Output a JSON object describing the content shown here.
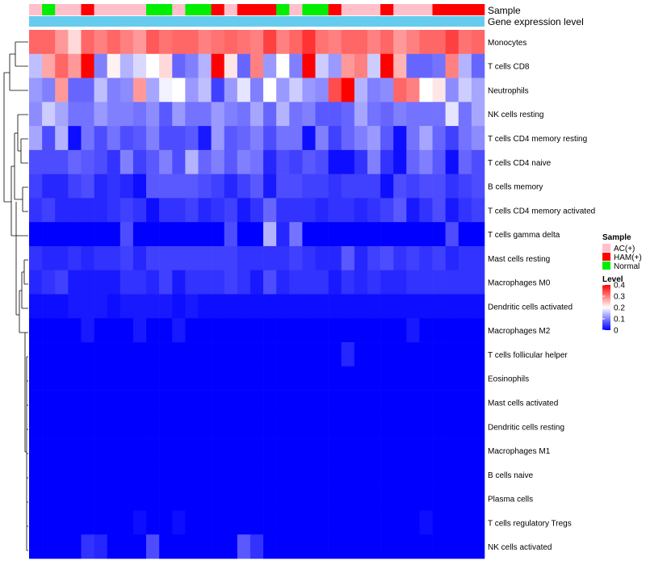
{
  "chart_data": {
    "type": "heatmap",
    "title": "",
    "annotation_tracks": [
      "Sample",
      "Gene expression level"
    ],
    "rows": [
      "Monocytes",
      "T cells CD8",
      "Neutrophils",
      "NK cells resting",
      "T cells CD4 memory resting",
      "T cells CD4 naive",
      "B cells memory",
      "T cells CD4 memory activated",
      "T cells gamma delta",
      "Mast cells resting",
      "Macrophages M0",
      "Dendritic cells activated",
      "Macrophages M2",
      "T cells follicular helper",
      "Eosinophils",
      "Mast cells activated",
      "Dendritic cells resting",
      "Macrophages M1",
      "B cells naive",
      "Plasma cells",
      "T cells regulatory  Tregs",
      "NK cells activated"
    ],
    "sample_groups": [
      "AC",
      "N",
      "AC",
      "AC",
      "H",
      "AC",
      "AC",
      "AC",
      "AC",
      "N",
      "N",
      "AC",
      "N",
      "N",
      "H",
      "AC",
      "H",
      "H",
      "H",
      "N",
      "AC",
      "N",
      "N",
      "H",
      "AC",
      "AC",
      "AC",
      "H",
      "AC",
      "AC",
      "AC",
      "H",
      "H",
      "H",
      "H"
    ],
    "values": [
      [
        0.32,
        0.32,
        0.28,
        0.23,
        0.32,
        0.3,
        0.32,
        0.3,
        0.28,
        0.33,
        0.31,
        0.32,
        0.32,
        0.3,
        0.31,
        0.32,
        0.31,
        0.3,
        0.35,
        0.3,
        0.32,
        0.36,
        0.31,
        0.3,
        0.32,
        0.32,
        0.3,
        0.32,
        0.28,
        0.3,
        0.32,
        0.32,
        0.35,
        0.31,
        0.32
      ],
      [
        0.15,
        0.27,
        0.32,
        0.28,
        0.4,
        0.1,
        0.21,
        0.14,
        0.17,
        0.2,
        0.23,
        0.08,
        0.1,
        0.14,
        0.4,
        0.22,
        0.08,
        0.3,
        0.12,
        0.2,
        0.1,
        0.4,
        0.16,
        0.12,
        0.28,
        0.3,
        0.16,
        0.4,
        0.26,
        0.08,
        0.08,
        0.09,
        0.3,
        0.14,
        0.08
      ],
      [
        0.12,
        0.1,
        0.28,
        0.08,
        0.08,
        0.15,
        0.1,
        0.11,
        0.28,
        0.13,
        0.19,
        0.2,
        0.12,
        0.15,
        0.05,
        0.12,
        0.18,
        0.1,
        0.2,
        0.12,
        0.16,
        0.12,
        0.11,
        0.34,
        0.4,
        0.14,
        0.1,
        0.11,
        0.32,
        0.3,
        0.2,
        0.22,
        0.11,
        0.16,
        0.13
      ],
      [
        0.11,
        0.16,
        0.13,
        0.09,
        0.09,
        0.12,
        0.1,
        0.1,
        0.09,
        0.11,
        0.07,
        0.12,
        0.09,
        0.09,
        0.12,
        0.1,
        0.09,
        0.13,
        0.08,
        0.14,
        0.09,
        0.1,
        0.07,
        0.07,
        0.08,
        0.13,
        0.09,
        0.08,
        0.1,
        0.09,
        0.09,
        0.09,
        0.18,
        0.09,
        0.13
      ],
      [
        0.13,
        0.06,
        0.14,
        0.01,
        0.09,
        0.06,
        0.09,
        0.06,
        0.07,
        0.1,
        0.06,
        0.06,
        0.07,
        0.02,
        0.12,
        0.07,
        0.08,
        0.1,
        0.06,
        0.09,
        0.09,
        0.01,
        0.1,
        0.05,
        0.08,
        0.1,
        0.12,
        0.07,
        0.01,
        0.09,
        0.13,
        0.08,
        0.05,
        0.09,
        0.11
      ],
      [
        0.06,
        0.06,
        0.06,
        0.08,
        0.07,
        0.06,
        0.04,
        0.1,
        0.05,
        0.07,
        0.1,
        0.06,
        0.14,
        0.08,
        0.1,
        0.07,
        0.1,
        0.09,
        0.03,
        0.06,
        0.05,
        0.07,
        0.06,
        0.01,
        0.01,
        0.04,
        0.1,
        0.04,
        0.01,
        0.08,
        0.1,
        0.07,
        0.01,
        0.08,
        0.06
      ],
      [
        0.05,
        0.03,
        0.03,
        0.05,
        0.06,
        0.03,
        0.04,
        0.03,
        0.01,
        0.07,
        0.07,
        0.07,
        0.07,
        0.06,
        0.05,
        0.03,
        0.05,
        0.07,
        0.02,
        0.06,
        0.06,
        0.05,
        0.05,
        0.04,
        0.05,
        0.05,
        0.05,
        0.01,
        0.06,
        0.05,
        0.06,
        0.06,
        0.04,
        0.05,
        0.06
      ],
      [
        0.04,
        0.05,
        0.03,
        0.03,
        0.03,
        0.03,
        0.04,
        0.05,
        0.04,
        0.01,
        0.04,
        0.04,
        0.05,
        0.03,
        0.04,
        0.05,
        0.02,
        0.04,
        0.08,
        0.04,
        0.04,
        0.04,
        0.03,
        0.04,
        0.04,
        0.03,
        0.04,
        0.05,
        0.07,
        0.02,
        0.04,
        0.06,
        0.02,
        0.04,
        0.05
      ],
      [
        0.0,
        0.0,
        0.0,
        0.0,
        0.0,
        0.0,
        0.0,
        0.06,
        0.0,
        0.0,
        0.0,
        0.0,
        0.0,
        0.0,
        0.0,
        0.06,
        0.0,
        0.0,
        0.14,
        0.03,
        0.09,
        0.0,
        0.0,
        0.0,
        0.0,
        0.0,
        0.0,
        0.0,
        0.0,
        0.0,
        0.0,
        0.0,
        0.06,
        0.0,
        0.0
      ],
      [
        0.04,
        0.03,
        0.03,
        0.04,
        0.03,
        0.04,
        0.04,
        0.05,
        0.03,
        0.05,
        0.05,
        0.05,
        0.05,
        0.05,
        0.05,
        0.05,
        0.04,
        0.04,
        0.04,
        0.04,
        0.05,
        0.04,
        0.03,
        0.03,
        0.07,
        0.03,
        0.05,
        0.06,
        0.04,
        0.05,
        0.04,
        0.05,
        0.03,
        0.04,
        0.04
      ],
      [
        0.03,
        0.04,
        0.05,
        0.02,
        0.02,
        0.02,
        0.02,
        0.04,
        0.04,
        0.03,
        0.05,
        0.02,
        0.04,
        0.04,
        0.04,
        0.05,
        0.04,
        0.02,
        0.06,
        0.03,
        0.04,
        0.04,
        0.04,
        0.02,
        0.04,
        0.03,
        0.04,
        0.03,
        0.03,
        0.04,
        0.04,
        0.04,
        0.04,
        0.04,
        0.04
      ],
      [
        0.01,
        0.01,
        0.01,
        0.02,
        0.02,
        0.02,
        0.01,
        0.02,
        0.02,
        0.02,
        0.02,
        0.01,
        0.02,
        0.01,
        0.01,
        0.01,
        0.01,
        0.01,
        0.01,
        0.01,
        0.01,
        0.01,
        0.01,
        0.01,
        0.01,
        0.01,
        0.01,
        0.01,
        0.01,
        0.01,
        0.01,
        0.01,
        0.01,
        0.01,
        0.01
      ],
      [
        0.0,
        0.0,
        0.0,
        0.0,
        0.02,
        0.0,
        0.0,
        0.0,
        0.02,
        0.0,
        0.0,
        0.02,
        0.0,
        0.0,
        0.0,
        0.0,
        0.0,
        0.0,
        0.0,
        0.0,
        0.0,
        0.0,
        0.0,
        0.0,
        0.0,
        0.0,
        0.0,
        0.0,
        0.0,
        0.02,
        0.0,
        0.0,
        0.0,
        0.0,
        0.0
      ],
      [
        0.0,
        0.0,
        0.0,
        0.0,
        0.0,
        0.0,
        0.0,
        0.0,
        0.0,
        0.0,
        0.0,
        0.0,
        0.0,
        0.0,
        0.0,
        0.0,
        0.0,
        0.0,
        0.0,
        0.0,
        0.0,
        0.0,
        0.0,
        0.0,
        0.03,
        0.0,
        0.0,
        0.0,
        0.0,
        0.0,
        0.0,
        0.0,
        0.0,
        0.0,
        0.0
      ],
      [
        0.0,
        0.0,
        0.0,
        0.0,
        0.0,
        0.0,
        0.0,
        0.0,
        0.0,
        0.0,
        0.0,
        0.0,
        0.0,
        0.0,
        0.0,
        0.0,
        0.0,
        0.0,
        0.0,
        0.0,
        0.0,
        0.0,
        0.0,
        0.0,
        0.0,
        0.0,
        0.0,
        0.0,
        0.0,
        0.0,
        0.0,
        0.0,
        0.0,
        0.0,
        0.0
      ],
      [
        0.0,
        0.0,
        0.0,
        0.0,
        0.0,
        0.0,
        0.0,
        0.0,
        0.0,
        0.0,
        0.0,
        0.0,
        0.0,
        0.0,
        0.0,
        0.0,
        0.0,
        0.0,
        0.0,
        0.0,
        0.0,
        0.0,
        0.0,
        0.0,
        0.0,
        0.0,
        0.0,
        0.0,
        0.0,
        0.0,
        0.0,
        0.0,
        0.0,
        0.0,
        0.0
      ],
      [
        0.0,
        0.0,
        0.0,
        0.0,
        0.0,
        0.0,
        0.0,
        0.0,
        0.0,
        0.0,
        0.0,
        0.0,
        0.0,
        0.0,
        0.0,
        0.0,
        0.0,
        0.0,
        0.0,
        0.0,
        0.0,
        0.0,
        0.0,
        0.0,
        0.0,
        0.0,
        0.0,
        0.0,
        0.0,
        0.0,
        0.0,
        0.0,
        0.0,
        0.0,
        0.0
      ],
      [
        0.0,
        0.0,
        0.0,
        0.0,
        0.0,
        0.0,
        0.0,
        0.0,
        0.0,
        0.0,
        0.0,
        0.0,
        0.0,
        0.0,
        0.0,
        0.0,
        0.0,
        0.0,
        0.0,
        0.0,
        0.0,
        0.0,
        0.0,
        0.0,
        0.0,
        0.0,
        0.0,
        0.0,
        0.0,
        0.0,
        0.0,
        0.0,
        0.0,
        0.0,
        0.0
      ],
      [
        0.0,
        0.0,
        0.0,
        0.0,
        0.0,
        0.0,
        0.0,
        0.0,
        0.0,
        0.0,
        0.0,
        0.0,
        0.0,
        0.0,
        0.0,
        0.0,
        0.0,
        0.0,
        0.0,
        0.0,
        0.0,
        0.0,
        0.0,
        0.0,
        0.0,
        0.0,
        0.0,
        0.0,
        0.0,
        0.0,
        0.0,
        0.0,
        0.0,
        0.0,
        0.0
      ],
      [
        0.0,
        0.0,
        0.0,
        0.0,
        0.0,
        0.0,
        0.0,
        0.0,
        0.0,
        0.0,
        0.0,
        0.0,
        0.0,
        0.0,
        0.0,
        0.0,
        0.0,
        0.0,
        0.0,
        0.0,
        0.0,
        0.0,
        0.0,
        0.0,
        0.0,
        0.0,
        0.0,
        0.0,
        0.0,
        0.0,
        0.0,
        0.0,
        0.0,
        0.0,
        0.0
      ],
      [
        0.0,
        0.0,
        0.0,
        0.0,
        0.0,
        0.0,
        0.0,
        0.0,
        0.01,
        0.0,
        0.0,
        0.01,
        0.0,
        0.0,
        0.0,
        0.0,
        0.0,
        0.0,
        0.0,
        0.0,
        0.0,
        0.0,
        0.0,
        0.0,
        0.0,
        0.0,
        0.0,
        0.0,
        0.0,
        0.0,
        0.01,
        0.0,
        0.0,
        0.0,
        0.0
      ],
      [
        0.0,
        0.0,
        0.0,
        0.0,
        0.04,
        0.03,
        0.0,
        0.0,
        0.0,
        0.06,
        0.0,
        0.0,
        0.0,
        0.0,
        0.0,
        0.0,
        0.07,
        0.04,
        0.0,
        0.0,
        0.0,
        0.0,
        0.0,
        0.0,
        0.0,
        0.0,
        0.0,
        0.0,
        0.0,
        0.0,
        0.0,
        0.0,
        0.0,
        0.0,
        0.0
      ]
    ],
    "legend": {
      "sample_title": "Sample",
      "sample_labels": [
        "AC(+)",
        "HAM(+)",
        "Normal"
      ],
      "sample_colors": [
        "#ffc0cb",
        "#ff0000",
        "#00ee00"
      ],
      "level_title": "Level",
      "level_ticks": [
        "0.4",
        "0.3",
        "0.2",
        "0.1",
        "0"
      ],
      "level_values": [
        0.4,
        0.3,
        0.2,
        0.1,
        0.0
      ]
    },
    "gene_track_color": "#66ccee",
    "color_scale": {
      "low": "#0000ff",
      "mid": "#ffffff",
      "high": "#ff0000",
      "min": 0,
      "mid_value": 0.2,
      "max": 0.4
    }
  }
}
